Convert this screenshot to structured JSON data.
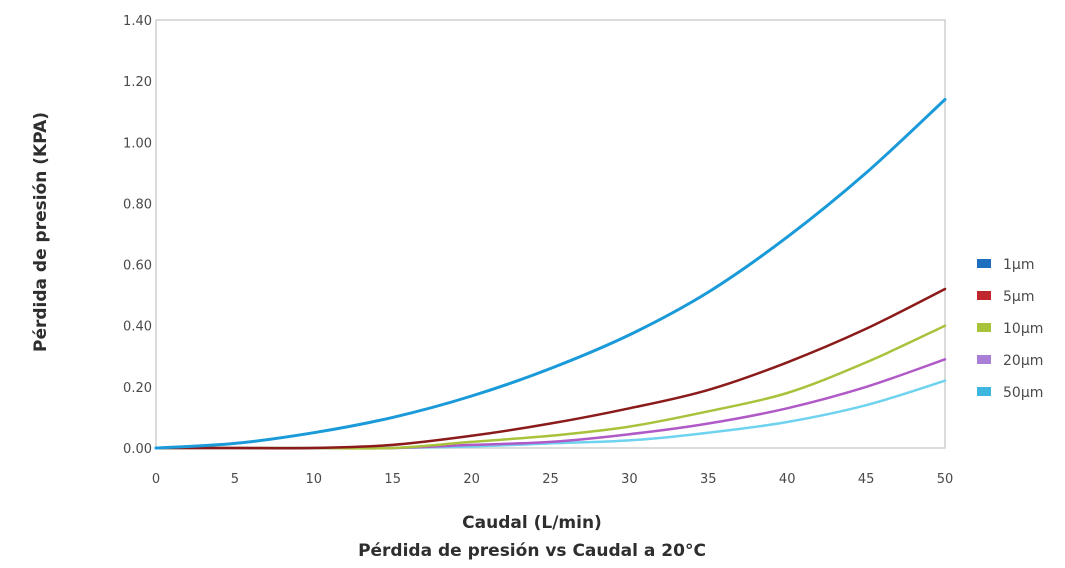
{
  "chart_data": {
    "type": "line",
    "title": "Pérdida de presión vs Caudal a 20°C",
    "xlabel": "Caudal (L/min)",
    "ylabel": "Pérdida de presión (KPA)",
    "xlim": [
      0,
      50
    ],
    "ylim": [
      0,
      1.4
    ],
    "xticks": [
      0,
      5,
      10,
      15,
      20,
      25,
      30,
      35,
      40,
      45,
      50
    ],
    "yticks": [
      "0.00",
      "0.20",
      "0.40",
      "0.60",
      "0.80",
      "1.00",
      "1.20",
      "1.40"
    ],
    "grid": false,
    "legend_position": "right",
    "x": [
      0,
      5,
      10,
      15,
      20,
      25,
      30,
      35,
      40,
      45,
      50
    ],
    "series": [
      {
        "name": "1µm",
        "color": "#1a9ad8",
        "values": [
          0.0,
          0.015,
          0.05,
          0.1,
          0.17,
          0.26,
          0.37,
          0.51,
          0.69,
          0.9,
          1.14
        ]
      },
      {
        "name": "5µm",
        "color": "#8b1a1a",
        "values": [
          0.0,
          0.0,
          0.0,
          0.01,
          0.04,
          0.08,
          0.13,
          0.19,
          0.28,
          0.39,
          0.52
        ]
      },
      {
        "name": "10µm",
        "color": "#a8c23c",
        "values": [
          0.0,
          0.0,
          0.0,
          0.0,
          0.02,
          0.04,
          0.07,
          0.12,
          0.18,
          0.28,
          0.4
        ]
      },
      {
        "name": "20µm",
        "color": "#b05ac8",
        "values": [
          0.0,
          0.0,
          0.0,
          0.0,
          0.01,
          0.02,
          0.045,
          0.08,
          0.13,
          0.2,
          0.29
        ]
      },
      {
        "name": "50µm",
        "color": "#6fd3ef",
        "values": [
          0.0,
          0.0,
          0.0,
          0.0,
          0.005,
          0.015,
          0.025,
          0.05,
          0.085,
          0.14,
          0.22
        ]
      }
    ],
    "legend_swatches": [
      {
        "name": "1µm",
        "color": "#1f6fbf"
      },
      {
        "name": "5µm",
        "color": "#c0272d"
      },
      {
        "name": "10µm",
        "color": "#a8c23c"
      },
      {
        "name": "20µm",
        "color": "#a87fd4"
      },
      {
        "name": "50µm",
        "color": "#3fb6e0"
      }
    ]
  }
}
